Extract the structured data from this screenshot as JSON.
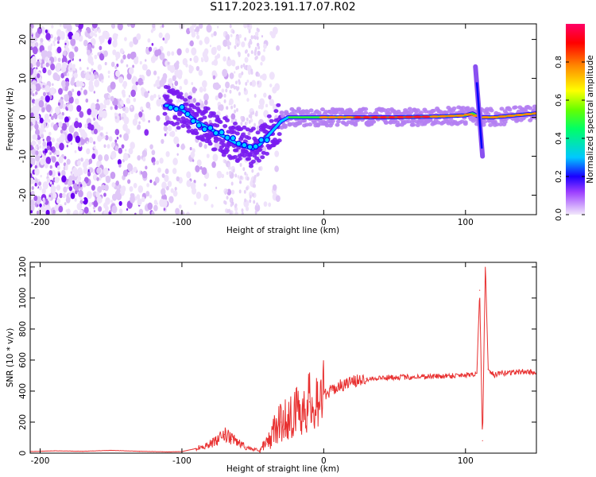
{
  "title": "S117.2023.191.17.07.R02",
  "chart_data": [
    {
      "type": "heatmap",
      "xlabel": "Height of straight line (km)",
      "ylabel": "Frequency (Hz)",
      "xlim": [
        -207,
        150
      ],
      "ylim": [
        -25,
        24
      ],
      "xticks": [
        -200,
        -100,
        0,
        100
      ],
      "yticks": [
        -20,
        -10,
        0,
        10,
        20
      ],
      "grid": false,
      "colorbar": {
        "label": "Normalized spectral amplitude",
        "range": [
          0.0,
          1.0
        ],
        "ticks": [
          0.0,
          0.2,
          0.4,
          0.6,
          0.8
        ],
        "colormap": [
          "#d7b8f0",
          "#7a00ff",
          "#0000ff",
          "#00c8ff",
          "#00ff00",
          "#ffff00",
          "#ff8800",
          "#ff0000",
          "#ff0066"
        ]
      },
      "ridge": {
        "x": [
          -110,
          -100,
          -90,
          -80,
          -70,
          -60,
          -50,
          -45,
          -40,
          -35,
          -30,
          -25,
          -20,
          -10,
          0,
          20,
          50,
          80,
          100,
          105,
          110,
          115,
          120,
          150
        ],
        "y": [
          3,
          2,
          -1,
          -3,
          -5,
          -7,
          -8,
          -7,
          -5,
          -3,
          -1,
          0,
          0,
          0,
          0,
          0,
          0,
          0.2,
          0.5,
          1,
          0,
          0,
          0,
          1
        ]
      },
      "spike": {
        "x": 110,
        "y_range": [
          -10,
          13
        ]
      }
    },
    {
      "type": "line",
      "xlabel": "Height of straight line (km)",
      "ylabel": "SNR (10 * v/v)",
      "xlim": [
        -207,
        150
      ],
      "ylim": [
        0,
        1230
      ],
      "xticks": [
        -200,
        -100,
        0,
        100
      ],
      "yticks": [
        0,
        200,
        400,
        600,
        800,
        1000,
        1200
      ],
      "grid": false,
      "series": [
        {
          "color": "#e83030",
          "x": [
            -207,
            -190,
            -170,
            -150,
            -130,
            -110,
            -100,
            -90,
            -80,
            -75,
            -70,
            -65,
            -60,
            -55,
            -50,
            -45,
            -40,
            -35,
            -30,
            -25,
            -20,
            -15,
            -10,
            -5,
            0,
            5,
            10,
            20,
            30,
            40,
            50,
            60,
            70,
            80,
            90,
            100,
            105,
            108,
            110,
            112,
            114,
            116,
            120,
            130,
            140,
            150
          ],
          "y": [
            10,
            15,
            12,
            18,
            12,
            8,
            10,
            30,
            60,
            80,
            120,
            90,
            70,
            40,
            25,
            20,
            60,
            150,
            200,
            230,
            260,
            300,
            330,
            360,
            380,
            400,
            430,
            460,
            480,
            485,
            490,
            490,
            495,
            495,
            500,
            505,
            510,
            515,
            1050,
            80,
            1230,
            540,
            505,
            520,
            525,
            520
          ]
        }
      ]
    }
  ]
}
